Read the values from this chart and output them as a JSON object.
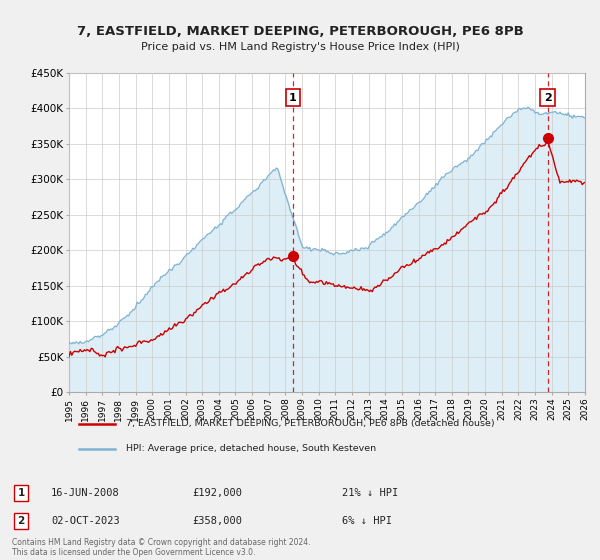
{
  "title": "7, EASTFIELD, MARKET DEEPING, PETERBOROUGH, PE6 8PB",
  "subtitle": "Price paid vs. HM Land Registry's House Price Index (HPI)",
  "ylabel_ticks": [
    "£0",
    "£50K",
    "£100K",
    "£150K",
    "£200K",
    "£250K",
    "£300K",
    "£350K",
    "£400K",
    "£450K"
  ],
  "ylim": [
    0,
    450000
  ],
  "xlim_start": 1995.0,
  "xlim_end": 2026.0,
  "sale1_date_label": "16-JUN-2008",
  "sale1_price": 192000,
  "sale1_pct": "21% ↓ HPI",
  "sale1_x": 2008.46,
  "sale2_date_label": "02-OCT-2023",
  "sale2_price": 358000,
  "sale2_x": 2023.75,
  "sale2_pct": "6% ↓ HPI",
  "legend_label_red": "7, EASTFIELD, MARKET DEEPING, PETERBOROUGH, PE6 8PB (detached house)",
  "legend_label_blue": "HPI: Average price, detached house, South Kesteven",
  "footer": "Contains HM Land Registry data © Crown copyright and database right 2024.\nThis data is licensed under the Open Government Licence v3.0.",
  "bg_color": "#f0f0f0",
  "plot_bg_color": "#ffffff",
  "red_color": "#cc0000",
  "blue_color": "#7fb3d3",
  "blue_fill_color": "#ddeef7",
  "dashed_color": "#cc0000"
}
